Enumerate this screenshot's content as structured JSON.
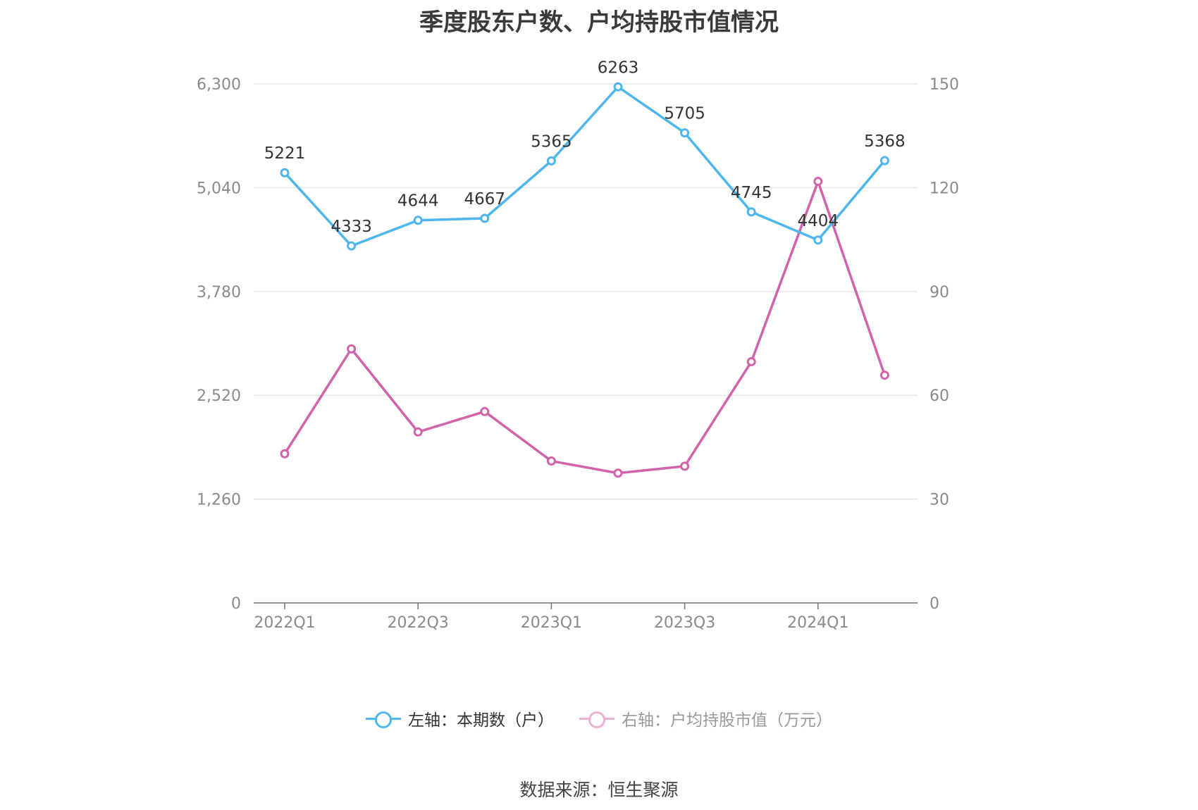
{
  "title": "季度股东户数、户均持股市值情况",
  "source": "数据来源：恒生聚源",
  "colors": {
    "left_series": "#4db6ec",
    "right_series": "#d063aa",
    "grid": "#e3e6ec",
    "axis": "#6b6f78"
  },
  "chart_data": {
    "type": "line",
    "x": [
      "2022Q1",
      "2022Q2",
      "2022Q3",
      "2022Q4",
      "2023Q1",
      "2023Q2",
      "2023Q3",
      "2023Q4",
      "2024Q1",
      "2024Q2"
    ],
    "x_tick_labels": [
      "2022Q1",
      "2022Q3",
      "2023Q1",
      "2023Q3",
      "2024Q1"
    ],
    "y_left": {
      "ylim": [
        0,
        6300
      ],
      "ticks": [
        0,
        1260,
        2520,
        3780,
        5040,
        6300
      ],
      "tick_labels": [
        "0",
        "1,260",
        "2,520",
        "3,780",
        "5,040",
        "6,300"
      ]
    },
    "y_right": {
      "ylim": [
        0,
        150
      ],
      "ticks": [
        0,
        30,
        60,
        90,
        120,
        150
      ],
      "tick_labels": [
        "0",
        "30",
        "60",
        "90",
        "120",
        "150"
      ]
    },
    "series": [
      {
        "name": "左轴：本期数（户）",
        "axis": "left",
        "values": [
          5221,
          4333,
          4644,
          4667,
          5365,
          6263,
          5705,
          4745,
          4404,
          5368
        ],
        "data_labels": [
          "5221",
          "4333",
          "4644",
          "4667",
          "5365",
          "6263",
          "5705",
          "4745",
          "4404",
          "5368"
        ]
      },
      {
        "name": "右轴：户均持股市值（万元）",
        "axis": "right",
        "values": [
          43.1,
          73.4,
          49.4,
          55.3,
          41.0,
          37.5,
          39.5,
          69.7,
          121.8,
          65.8
        ]
      }
    ],
    "grid": true,
    "legend": "bottom"
  }
}
